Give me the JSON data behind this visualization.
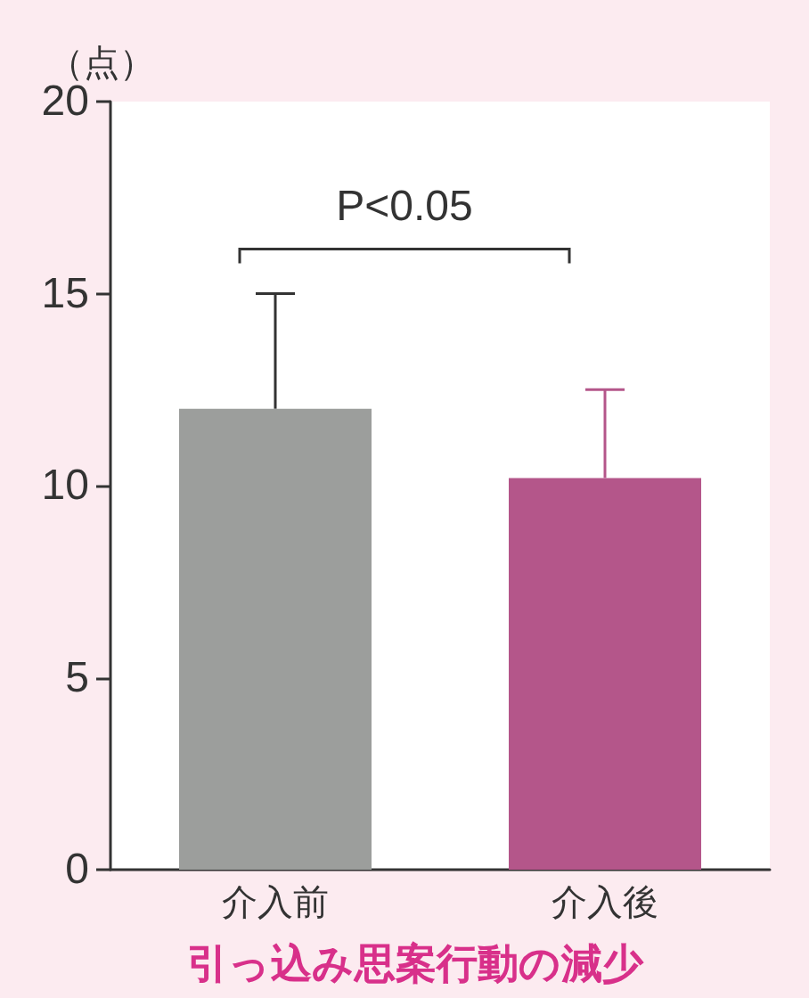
{
  "chart_data": {
    "type": "bar",
    "title": "引っ込み思案行動の減少",
    "ylabel": "（点）",
    "categories": [
      "介入前",
      "介入後"
    ],
    "values": [
      12.0,
      10.2
    ],
    "colors": [
      "#9c9e9c",
      "#b4568a"
    ],
    "errors": [
      [
        12.0,
        15.0
      ],
      [
        10.2,
        12.5
      ]
    ],
    "ylim": [
      0,
      20
    ],
    "yticks": [
      0,
      5,
      10,
      15,
      20
    ],
    "annotations": [
      "P<0.05"
    ]
  }
}
